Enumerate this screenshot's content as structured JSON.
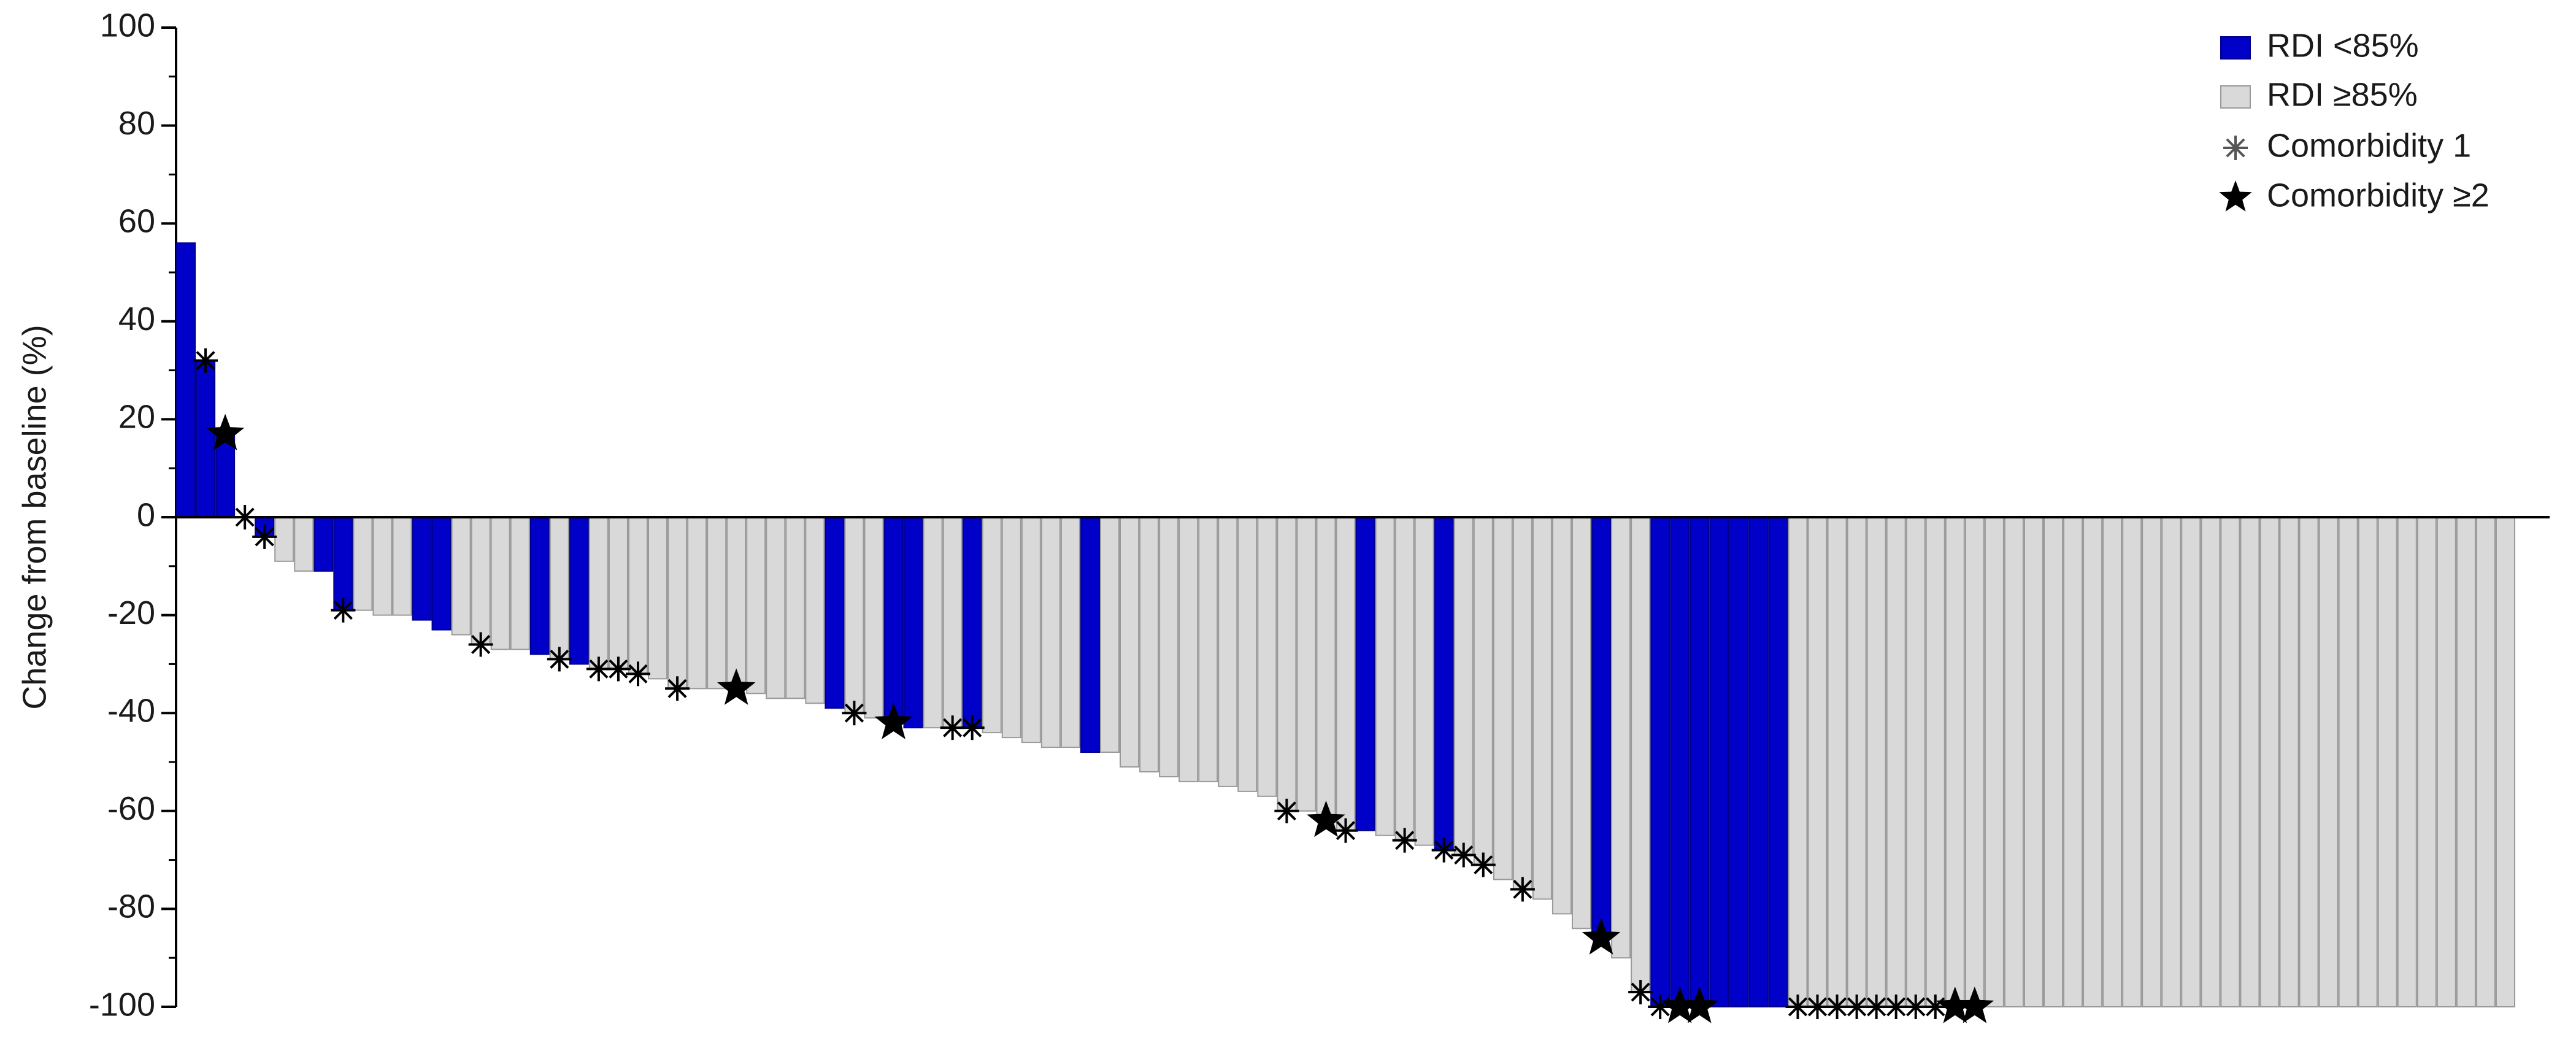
{
  "chart_data": {
    "type": "waterfall",
    "y_label": "Change from baseline (%)",
    "ylim": [
      -100,
      100
    ],
    "yticks": [
      -100,
      -80,
      -60,
      -40,
      -20,
      0,
      20,
      40,
      60,
      80,
      100
    ],
    "legend": "upper right",
    "series": [
      {
        "name": "RDI <85%",
        "color": "#0000c8",
        "values": [
          56,
          32,
          17,
          null,
          -4,
          null,
          null,
          -11,
          -19,
          null,
          null,
          null,
          -21,
          -23,
          null,
          null,
          null,
          null,
          -28,
          null,
          -30,
          null,
          null,
          null,
          null,
          null,
          null,
          null,
          null,
          null,
          null,
          null,
          null,
          -39,
          null,
          null,
          -42,
          -43,
          null,
          null,
          -43,
          null,
          null,
          null,
          null,
          null,
          -48,
          null,
          null,
          null,
          null,
          null,
          null,
          null,
          null,
          null,
          null,
          null,
          null,
          null,
          -64,
          null,
          null,
          null,
          -68,
          null,
          null,
          null,
          null,
          null,
          null,
          null,
          -86,
          null,
          null,
          -100,
          -100,
          -100,
          -100,
          -100,
          -100,
          -100,
          null,
          null,
          null,
          null,
          null,
          null,
          null,
          null,
          null,
          null,
          null,
          null,
          null,
          null,
          null,
          null,
          null,
          null,
          null,
          null,
          null,
          null,
          null,
          null,
          null,
          null,
          null,
          null,
          null,
          null,
          null,
          null,
          null,
          null,
          null,
          null,
          null
        ]
      },
      {
        "name": "RDI ≥85%",
        "color": "#d9d9d9",
        "values": [
          null,
          null,
          null,
          0,
          null,
          -9,
          -11,
          null,
          null,
          -19,
          -20,
          -20,
          null,
          null,
          -24,
          -26,
          -27,
          -27,
          null,
          -29,
          null,
          -31,
          -31,
          -32,
          -33,
          -35,
          -35,
          -35,
          -35,
          -36,
          -37,
          -37,
          -38,
          null,
          -40,
          -41,
          null,
          null,
          -43,
          -43,
          null,
          -44,
          -45,
          -46,
          -47,
          -47,
          null,
          -48,
          -51,
          -52,
          -53,
          -54,
          -54,
          -55,
          -56,
          -57,
          -60,
          -60,
          -62,
          -64,
          null,
          -65,
          -66,
          -67,
          null,
          -69,
          -71,
          -74,
          -76,
          -78,
          -81,
          -84,
          null,
          -90,
          -97,
          null,
          null,
          null,
          null,
          null,
          null,
          null,
          -100,
          -100,
          -100,
          -100,
          -100,
          -100,
          -100,
          -100,
          -100,
          -100,
          -100,
          -100,
          -100,
          -100,
          -100,
          -100,
          -100,
          -100,
          -100,
          -100,
          -100,
          -100,
          -100,
          -100,
          -100,
          -100,
          -100,
          -100,
          -100,
          -100,
          -100,
          -100,
          -100,
          -100,
          -100,
          -100,
          -100
        ]
      }
    ],
    "markers": [
      {
        "name": "Comorbidity 1",
        "symbol": "asterisk",
        "color": "#000000",
        "values": [
          null,
          32,
          null,
          0,
          -4,
          null,
          null,
          null,
          -19,
          null,
          null,
          null,
          null,
          null,
          null,
          -26,
          null,
          null,
          null,
          -29,
          null,
          -31,
          -31,
          -32,
          null,
          -35,
          null,
          null,
          null,
          null,
          null,
          null,
          null,
          null,
          -40,
          null,
          null,
          null,
          null,
          -43,
          -43,
          null,
          null,
          null,
          null,
          null,
          null,
          null,
          null,
          null,
          null,
          null,
          null,
          null,
          null,
          null,
          -60,
          null,
          null,
          -64,
          null,
          null,
          -66,
          null,
          -68,
          -69,
          -71,
          null,
          -76,
          null,
          null,
          null,
          null,
          null,
          -97,
          -100,
          null,
          null,
          null,
          null,
          null,
          null,
          -100,
          -100,
          -100,
          -100,
          -100,
          -100,
          -100,
          -100,
          null,
          null,
          null,
          null,
          null,
          null,
          null,
          null,
          null,
          null,
          null,
          null,
          null,
          null,
          null,
          null,
          null,
          null,
          null,
          null,
          null,
          null,
          null,
          null,
          null,
          null,
          null,
          null,
          null
        ]
      },
      {
        "name": "Comorbidity ≥2",
        "symbol": "star",
        "color": "#000000",
        "values": [
          null,
          null,
          17,
          null,
          null,
          null,
          null,
          null,
          null,
          null,
          null,
          null,
          null,
          null,
          null,
          null,
          null,
          null,
          null,
          null,
          null,
          null,
          null,
          null,
          null,
          null,
          null,
          null,
          -35,
          null,
          null,
          null,
          null,
          null,
          null,
          null,
          -42,
          null,
          null,
          null,
          null,
          null,
          null,
          null,
          null,
          null,
          null,
          null,
          null,
          null,
          null,
          null,
          null,
          null,
          null,
          null,
          null,
          null,
          -62,
          null,
          null,
          null,
          null,
          null,
          null,
          null,
          null,
          null,
          null,
          null,
          null,
          null,
          -86,
          null,
          null,
          null,
          -100,
          -100,
          null,
          null,
          null,
          null,
          null,
          null,
          null,
          null,
          null,
          null,
          null,
          null,
          -100,
          -100,
          null,
          null,
          null,
          null,
          null,
          null,
          null,
          null,
          null,
          null,
          null,
          null,
          null,
          null,
          null,
          null,
          null,
          null,
          null,
          null,
          null,
          null,
          null,
          null,
          null,
          null,
          null
        ]
      }
    ]
  }
}
